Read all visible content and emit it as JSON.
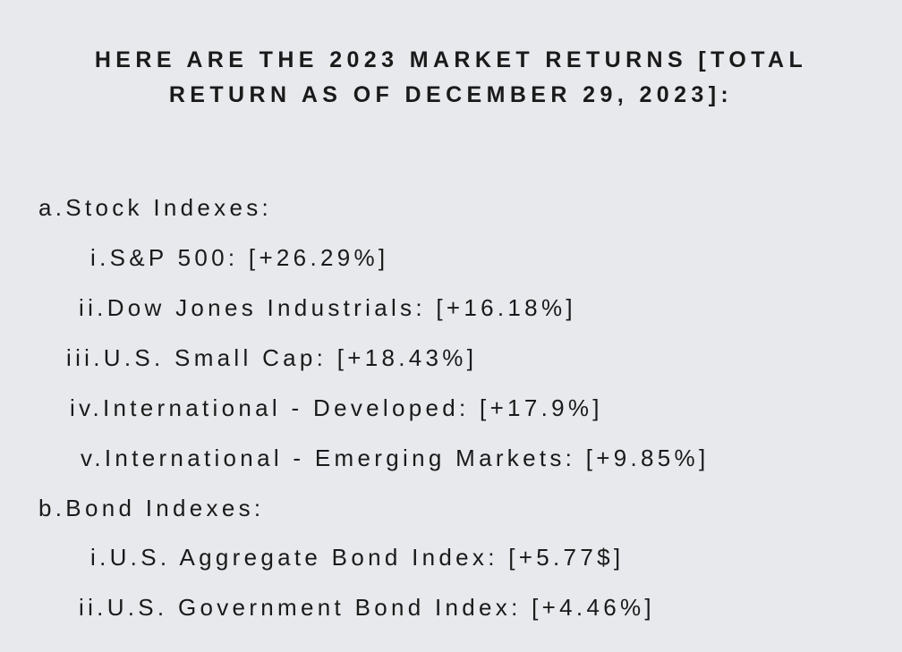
{
  "heading": {
    "line1": "HERE ARE THE 2023 MARKET RETURNS [TOTAL",
    "line2": "RETURN AS OF DECEMBER 29, 2023]:"
  },
  "sections": [
    {
      "marker": "a.",
      "label": "Stock Indexes:",
      "items": [
        {
          "marker": "i.",
          "text": "S&P 500: [+26.29%]"
        },
        {
          "marker": "ii.",
          "text": "Dow Jones Industrials: [+16.18%]"
        },
        {
          "marker": "iii.",
          "text": "U.S. Small Cap: [+18.43%]"
        },
        {
          "marker": "iv.",
          "text": "International - Developed: [+17.9%]"
        },
        {
          "marker": "v.",
          "text": "International - Emerging Markets: [+9.85%]"
        }
      ]
    },
    {
      "marker": "b.",
      "label": "Bond Indexes:",
      "items": [
        {
          "marker": "i.",
          "text": "U.S. Aggregate Bond Index: [+5.77$]"
        },
        {
          "marker": "ii.",
          "text": "U.S. Government Bond Index: [+4.46%]"
        }
      ]
    }
  ]
}
